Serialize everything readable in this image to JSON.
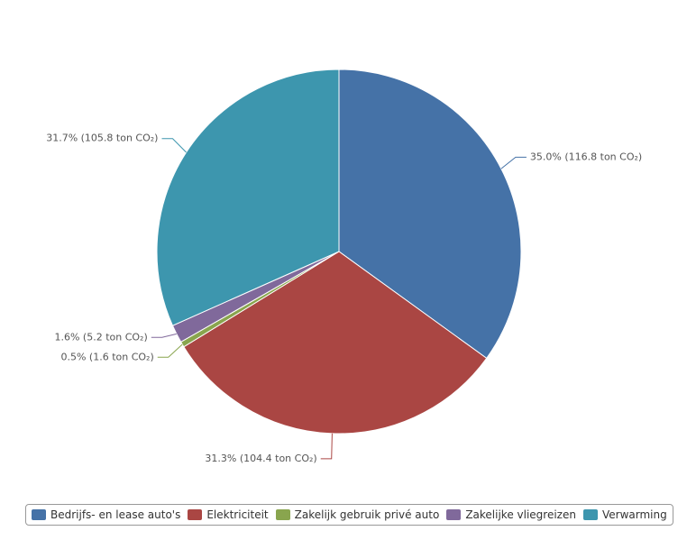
{
  "chart_data": {
    "type": "pie",
    "categories": [
      "Bedrijfs- en lease auto's",
      "Elektriciteit",
      "Zakelijk gebruik privé auto",
      "Zakelijke vliegreizen",
      "Verwarming"
    ],
    "values": [
      35.0,
      31.3,
      0.5,
      1.6,
      31.7
    ],
    "value_labels": [
      "35.0% (116.8 ton CO₂)",
      "31.3% (104.4 ton CO₂)",
      "0.5% (1.6 ton CO₂)",
      "1.6% (5.2 ton CO₂)",
      "31.7% (105.8 ton CO₂)"
    ],
    "colors": [
      "#4572a7",
      "#aa4643",
      "#89a54e",
      "#80699b",
      "#3d96ae"
    ],
    "legend": "bottom"
  }
}
